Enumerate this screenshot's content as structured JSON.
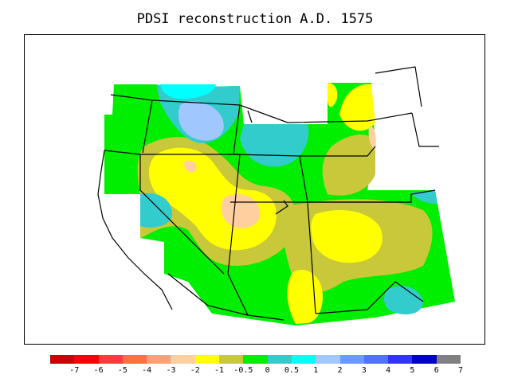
{
  "title": "PDSI reconstruction A.D. 1575",
  "colors": {
    "m7": "#cc0000",
    "m6": "#ff0000",
    "m5": "#ff3a3a",
    "m4": "#ff7040",
    "m3": "#ffa070",
    "m2": "#ffcfa0",
    "m1": "#ffff00",
    "m05": "#c8c83a",
    "z0": "#00ee00",
    "p05": "#33cccc",
    "p1": "#00ffff",
    "p2": "#a0c8ff",
    "p3": "#6a9aff",
    "p4": "#4f72ff",
    "p5": "#3333ff",
    "p6": "#0000cc",
    "p7": "#808080",
    "state_lines": "#000000"
  },
  "legend": {
    "swatch_colors": [
      "#cc0000",
      "#ff0000",
      "#ff3a3a",
      "#ff7040",
      "#ffa070",
      "#ffcfa0",
      "#ffff00",
      "#c8c83a",
      "#00ee00",
      "#33cccc",
      "#00ffff",
      "#a0c8ff",
      "#6a9aff",
      "#4f72ff",
      "#3333ff",
      "#0000cc",
      "#808080"
    ],
    "tick_labels": [
      "-7",
      "-6",
      "-5",
      "-4",
      "-3",
      "-2",
      "-1",
      "-0.5",
      "0",
      "0.5",
      "1",
      "2",
      "3",
      "4",
      "5",
      "6",
      "7"
    ]
  }
}
